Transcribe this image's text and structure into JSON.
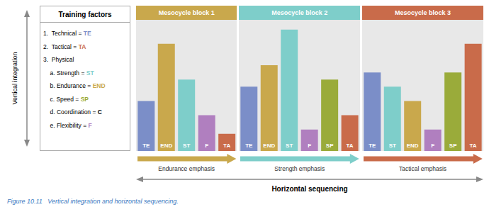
{
  "chart_data": {
    "type": "bar",
    "groups": [
      {
        "name": "Mesocycle block 1",
        "color": "#c9a84c",
        "label": "Endurance emphasis",
        "categories": [
          "TE",
          "END",
          "ST",
          "F",
          "TA"
        ],
        "values": [
          3.5,
          7.5,
          5.0,
          2.5,
          1.2
        ],
        "colors": [
          "#7b8ec8",
          "#c9a84c",
          "#7ececa",
          "#b07fbf",
          "#c96b4a"
        ]
      },
      {
        "name": "Mesocycle block 2",
        "color": "#7ececa",
        "label": "Strength emphasis",
        "categories": [
          "TE",
          "END",
          "ST",
          "F",
          "SP",
          "TA"
        ],
        "values": [
          4.5,
          6.0,
          8.5,
          1.5,
          5.0,
          2.5
        ],
        "colors": [
          "#7b8ec8",
          "#c9a84c",
          "#7ececa",
          "#b07fbf",
          "#9aab3a",
          "#c96b4a"
        ]
      },
      {
        "name": "Mesocycle block 3",
        "color": "#c96b4a",
        "label": "Tactical emphasis",
        "categories": [
          "TE",
          "ST",
          "END",
          "F",
          "SP",
          "TA"
        ],
        "values": [
          5.5,
          4.5,
          3.5,
          1.5,
          5.5,
          7.5
        ],
        "colors": [
          "#7b8ec8",
          "#7ececa",
          "#c9a84c",
          "#b07fbf",
          "#9aab3a",
          "#c96b4a"
        ]
      }
    ],
    "ylim": [
      0,
      9.18
    ],
    "tick_labels": false,
    "grid": false,
    "legend_title": "Training factors",
    "legend_lines": [
      {
        "text": "1.  Technical = ",
        "label": "TE",
        "color": "#7b8ec8"
      },
      {
        "text": "2.  Tactical = ",
        "label": "TA",
        "color": "#c96b4a"
      },
      {
        "text": "3.  Physical"
      },
      {
        "text": "    a. Strength = ",
        "label": "ST",
        "color": "#7ececa"
      },
      {
        "text": "    b. Endurance = ",
        "label": "END",
        "color": "#c9a84c"
      },
      {
        "text": "    c. Speed = ",
        "label": "SP",
        "color": "#9aab3a"
      },
      {
        "text": "    d. Coordination = ",
        "label": "C",
        "color": "black"
      },
      {
        "text": "    e. Flexibility = ",
        "label": "F",
        "color": "#b07fbf"
      }
    ],
    "ylabel": "Vertical integration",
    "xlabel": "Horizontal sequencing",
    "caption": {
      "text": "Figure 10.11   Vertical integration and horizontal sequencing.",
      "color": "#3a7abf"
    }
  }
}
